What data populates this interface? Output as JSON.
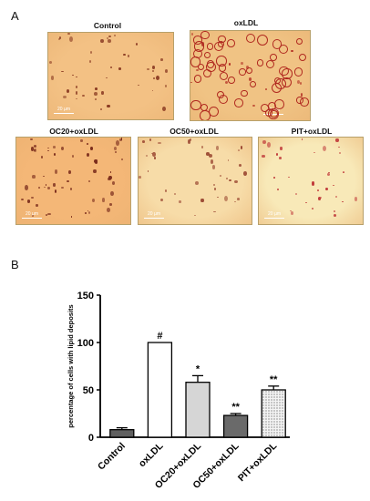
{
  "panel_a": {
    "letter": "A",
    "images": [
      {
        "title": "Control",
        "scale": "20 µm",
        "bg": "#f3c184"
      },
      {
        "title": "oxLDL",
        "scale": "20 µm",
        "bg": "#f0c384"
      },
      {
        "title": "OC20+oxLDL",
        "scale": "20 µm",
        "bg": "#f4b777"
      },
      {
        "title": "OC50+oxLDL",
        "scale": "20 µm",
        "bg": "#f7dca8"
      },
      {
        "title": "PIT+oxLDL",
        "scale": "20 µm",
        "bg": "#f8e9b8"
      }
    ]
  },
  "panel_b": {
    "letter": "B"
  },
  "chart_data": {
    "type": "bar",
    "categories": [
      "Control",
      "oxLDL",
      "OC20+oxLDL",
      "OC50+oxLDL",
      "PIT+oxLDL"
    ],
    "values": [
      8,
      100,
      58,
      23,
      50
    ],
    "errors": [
      2,
      0,
      7,
      2,
      4
    ],
    "annotations": [
      "",
      "#",
      "*",
      "**",
      "**"
    ],
    "fills": [
      "#606060",
      "#ffffff",
      "#d6d6d6",
      "#6a6a6a",
      "dotted"
    ],
    "ylabel": "percentage of cells with lipid deposits",
    "ylim": [
      0,
      150
    ],
    "yticks": [
      0,
      50,
      100,
      150
    ],
    "grid": false
  }
}
